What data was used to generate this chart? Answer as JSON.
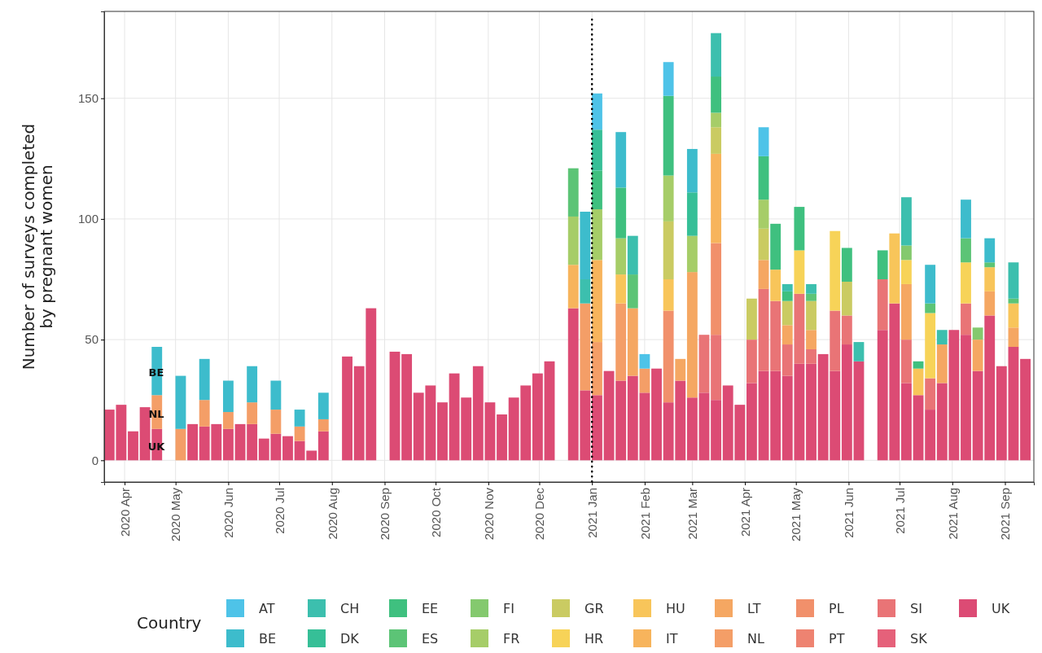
{
  "chart_data": {
    "type": "bar",
    "stacked": true,
    "ylabel": "Number of surveys completed\nby pregnant women",
    "legend_title": "Country",
    "x": [
      "2020-03-23",
      "2020-03-30",
      "2020-04-06",
      "2020-04-13",
      "2020-04-20",
      "2020-05-04",
      "2020-05-11",
      "2020-05-18",
      "2020-05-25",
      "2020-06-01",
      "2020-06-08",
      "2020-06-15",
      "2020-06-22",
      "2020-06-29",
      "2020-07-06",
      "2020-07-13",
      "2020-07-20",
      "2020-07-27",
      "2020-08-10",
      "2020-08-17",
      "2020-08-24",
      "2020-09-07",
      "2020-09-14",
      "2020-09-21",
      "2020-09-28",
      "2020-10-05",
      "2020-10-12",
      "2020-10-19",
      "2020-10-26",
      "2020-11-02",
      "2020-11-09",
      "2020-11-16",
      "2020-11-23",
      "2020-11-30",
      "2020-12-07",
      "2020-12-21",
      "2020-12-28",
      "2021-01-04",
      "2021-01-11",
      "2021-01-18",
      "2021-01-25",
      "2021-02-01",
      "2021-02-08",
      "2021-02-15",
      "2021-02-22",
      "2021-03-01",
      "2021-03-08",
      "2021-03-15",
      "2021-03-22",
      "2021-03-29",
      "2021-04-05",
      "2021-04-12",
      "2021-04-19",
      "2021-04-26",
      "2021-05-03",
      "2021-05-10",
      "2021-05-17",
      "2021-05-24",
      "2021-05-31",
      "2021-06-07",
      "2021-06-21",
      "2021-06-28",
      "2021-07-05",
      "2021-07-12",
      "2021-07-19",
      "2021-07-26",
      "2021-08-02",
      "2021-08-09",
      "2021-08-16",
      "2021-08-23",
      "2021-08-30",
      "2021-09-06",
      "2021-09-13"
    ],
    "series": [
      {
        "name": "UK",
        "color": "#dc4b74",
        "values": [
          21,
          23,
          12,
          22,
          13,
          0,
          15,
          14,
          15,
          13,
          15,
          15,
          9,
          11,
          10,
          8,
          4,
          12,
          43,
          39,
          63,
          45,
          44,
          28,
          31,
          24,
          36,
          26,
          39,
          24,
          19,
          26,
          31,
          36,
          41,
          63,
          29,
          27,
          37,
          33,
          35,
          28,
          38,
          24,
          33,
          26,
          28,
          25,
          31,
          23,
          32,
          37,
          37,
          35,
          40,
          40,
          44,
          37,
          48,
          41,
          54,
          65,
          32,
          27,
          21,
          32,
          54,
          52,
          37,
          60,
          39,
          47,
          42
        ]
      },
      {
        "name": "SK",
        "color": "#e5617a",
        "values": [
          0,
          0,
          0,
          0,
          0,
          0,
          0,
          0,
          0,
          0,
          0,
          0,
          0,
          0,
          0,
          0,
          0,
          0,
          0,
          0,
          0,
          0,
          0,
          0,
          0,
          0,
          0,
          0,
          0,
          0,
          0,
          0,
          0,
          0,
          0,
          0,
          0,
          0,
          0,
          0,
          0,
          0,
          0,
          0,
          0,
          0,
          0,
          0,
          0,
          0,
          0,
          0,
          0,
          0,
          0,
          0,
          0,
          0,
          0,
          0,
          0,
          0,
          0,
          0,
          0,
          0,
          0,
          0,
          0,
          0,
          0,
          0,
          0
        ]
      },
      {
        "name": "SI",
        "color": "#e97476",
        "values": [
          0,
          0,
          0,
          0,
          0,
          0,
          0,
          0,
          0,
          0,
          0,
          0,
          0,
          0,
          0,
          0,
          0,
          0,
          0,
          0,
          0,
          0,
          0,
          0,
          0,
          0,
          0,
          0,
          0,
          0,
          0,
          0,
          0,
          0,
          0,
          0,
          0,
          0,
          0,
          0,
          0,
          0,
          0,
          0,
          0,
          0,
          24,
          27,
          0,
          0,
          18,
          34,
          29,
          13,
          29,
          6,
          0,
          25,
          12,
          0,
          21,
          0,
          18,
          0,
          13,
          0,
          0,
          13,
          0,
          0,
          0,
          0,
          0
        ]
      },
      {
        "name": "PT",
        "color": "#ee8371",
        "values": [
          0,
          0,
          0,
          0,
          0,
          0,
          0,
          0,
          0,
          0,
          0,
          0,
          0,
          0,
          0,
          0,
          0,
          0,
          0,
          0,
          0,
          0,
          0,
          0,
          0,
          0,
          0,
          0,
          0,
          0,
          0,
          0,
          0,
          0,
          0,
          0,
          0,
          0,
          0,
          0,
          0,
          0,
          0,
          0,
          0,
          0,
          0,
          0,
          0,
          0,
          0,
          0,
          0,
          0,
          0,
          0,
          0,
          0,
          0,
          0,
          0,
          0,
          0,
          0,
          0,
          0,
          0,
          0,
          0,
          0,
          0,
          0,
          0
        ]
      },
      {
        "name": "PL",
        "color": "#f1906b",
        "values": [
          0,
          0,
          0,
          0,
          0,
          0,
          0,
          0,
          0,
          0,
          0,
          0,
          0,
          0,
          0,
          0,
          0,
          0,
          0,
          0,
          0,
          0,
          0,
          0,
          0,
          0,
          0,
          0,
          0,
          0,
          0,
          0,
          0,
          0,
          0,
          0,
          0,
          0,
          0,
          0,
          0,
          0,
          0,
          38,
          0,
          0,
          0,
          38,
          0,
          0,
          0,
          0,
          0,
          0,
          0,
          0,
          0,
          0,
          0,
          0,
          0,
          0,
          0,
          0,
          0,
          0,
          0,
          0,
          0,
          0,
          0,
          0,
          0
        ]
      },
      {
        "name": "NL",
        "color": "#f49e67",
        "values": [
          0,
          0,
          0,
          0,
          14,
          13,
          0,
          11,
          0,
          7,
          0,
          9,
          0,
          10,
          0,
          6,
          0,
          5,
          0,
          0,
          0,
          0,
          0,
          0,
          0,
          0,
          0,
          0,
          0,
          0,
          0,
          0,
          0,
          0,
          0,
          0,
          36,
          22,
          0,
          32,
          0,
          10,
          0,
          0,
          0,
          0,
          0,
          0,
          0,
          0,
          0,
          0,
          0,
          0,
          0,
          0,
          0,
          0,
          0,
          0,
          0,
          0,
          0,
          0,
          0,
          0,
          0,
          0,
          0,
          0,
          0,
          0,
          0
        ]
      },
      {
        "name": "LT",
        "color": "#f5a762",
        "values": [
          0,
          0,
          0,
          0,
          0,
          0,
          0,
          0,
          0,
          0,
          0,
          0,
          0,
          0,
          0,
          0,
          0,
          0,
          0,
          0,
          0,
          0,
          0,
          0,
          0,
          0,
          0,
          0,
          0,
          0,
          0,
          0,
          0,
          0,
          0,
          0,
          0,
          0,
          0,
          0,
          28,
          0,
          0,
          0,
          9,
          52,
          0,
          0,
          0,
          0,
          0,
          12,
          0,
          8,
          0,
          8,
          0,
          0,
          0,
          0,
          0,
          0,
          23,
          0,
          0,
          16,
          0,
          0,
          13,
          10,
          0,
          8,
          0
        ]
      },
      {
        "name": "IT",
        "color": "#f7b45c",
        "values": [
          0,
          0,
          0,
          0,
          0,
          0,
          0,
          0,
          0,
          0,
          0,
          0,
          0,
          0,
          0,
          0,
          0,
          0,
          0,
          0,
          0,
          0,
          0,
          0,
          0,
          0,
          0,
          0,
          0,
          0,
          0,
          0,
          0,
          0,
          0,
          18,
          0,
          34,
          0,
          0,
          0,
          0,
          0,
          0,
          0,
          0,
          0,
          37,
          0,
          0,
          0,
          0,
          0,
          0,
          0,
          0,
          0,
          0,
          0,
          0,
          0,
          0,
          0,
          0,
          0,
          0,
          0,
          0,
          0,
          0,
          0,
          0,
          0
        ]
      },
      {
        "name": "HU",
        "color": "#f8c55a",
        "values": [
          0,
          0,
          0,
          0,
          0,
          0,
          0,
          0,
          0,
          0,
          0,
          0,
          0,
          0,
          0,
          0,
          0,
          0,
          0,
          0,
          0,
          0,
          0,
          0,
          0,
          0,
          0,
          0,
          0,
          0,
          0,
          0,
          0,
          0,
          0,
          0,
          0,
          0,
          0,
          12,
          0,
          0,
          0,
          13,
          0,
          0,
          0,
          0,
          0,
          0,
          0,
          0,
          13,
          0,
          0,
          0,
          0,
          0,
          0,
          0,
          0,
          29,
          0,
          11,
          0,
          0,
          0,
          0,
          0,
          10,
          0,
          10,
          0
        ]
      },
      {
        "name": "HR",
        "color": "#f7d358",
        "values": [
          0,
          0,
          0,
          0,
          0,
          0,
          0,
          0,
          0,
          0,
          0,
          0,
          0,
          0,
          0,
          0,
          0,
          0,
          0,
          0,
          0,
          0,
          0,
          0,
          0,
          0,
          0,
          0,
          0,
          0,
          0,
          0,
          0,
          0,
          0,
          0,
          0,
          0,
          0,
          0,
          0,
          0,
          0,
          0,
          0,
          0,
          0,
          0,
          0,
          0,
          0,
          0,
          0,
          0,
          18,
          0,
          0,
          33,
          0,
          0,
          0,
          0,
          10,
          0,
          27,
          0,
          0,
          17,
          0,
          0,
          0,
          0,
          0
        ]
      },
      {
        "name": "GR",
        "color": "#cacb62",
        "values": [
          0,
          0,
          0,
          0,
          0,
          0,
          0,
          0,
          0,
          0,
          0,
          0,
          0,
          0,
          0,
          0,
          0,
          0,
          0,
          0,
          0,
          0,
          0,
          0,
          0,
          0,
          0,
          0,
          0,
          0,
          0,
          0,
          0,
          0,
          0,
          0,
          0,
          0,
          0,
          0,
          0,
          0,
          0,
          24,
          0,
          0,
          0,
          11,
          0,
          0,
          17,
          13,
          0,
          10,
          0,
          12,
          0,
          0,
          14,
          0,
          0,
          0,
          0,
          0,
          0,
          0,
          0,
          0,
          0,
          0,
          0,
          0,
          0
        ]
      },
      {
        "name": "FR",
        "color": "#a6cd68",
        "values": [
          0,
          0,
          0,
          0,
          0,
          0,
          0,
          0,
          0,
          0,
          0,
          0,
          0,
          0,
          0,
          0,
          0,
          0,
          0,
          0,
          0,
          0,
          0,
          0,
          0,
          0,
          0,
          0,
          0,
          0,
          0,
          0,
          0,
          0,
          0,
          20,
          0,
          21,
          0,
          15,
          0,
          0,
          0,
          19,
          0,
          15,
          0,
          6,
          0,
          0,
          0,
          12,
          0,
          0,
          0,
          0,
          0,
          0,
          0,
          0,
          0,
          0,
          0,
          0,
          0,
          0,
          0,
          0,
          0,
          0,
          0,
          0,
          0
        ]
      },
      {
        "name": "FI",
        "color": "#84c96e",
        "values": [
          0,
          0,
          0,
          0,
          0,
          0,
          0,
          0,
          0,
          0,
          0,
          0,
          0,
          0,
          0,
          0,
          0,
          0,
          0,
          0,
          0,
          0,
          0,
          0,
          0,
          0,
          0,
          0,
          0,
          0,
          0,
          0,
          0,
          0,
          0,
          0,
          0,
          0,
          0,
          0,
          0,
          0,
          0,
          0,
          0,
          0,
          0,
          0,
          0,
          0,
          0,
          0,
          0,
          0,
          0,
          0,
          0,
          0,
          0,
          0,
          0,
          0,
          6,
          0,
          0,
          0,
          0,
          0,
          5,
          0,
          0,
          0,
          0
        ]
      },
      {
        "name": "ES",
        "color": "#5cc476",
        "values": [
          0,
          0,
          0,
          0,
          0,
          0,
          0,
          0,
          0,
          0,
          0,
          0,
          0,
          0,
          0,
          0,
          0,
          0,
          0,
          0,
          0,
          0,
          0,
          0,
          0,
          0,
          0,
          0,
          0,
          0,
          0,
          0,
          0,
          0,
          0,
          20,
          0,
          0,
          0,
          0,
          14,
          0,
          0,
          0,
          0,
          0,
          0,
          0,
          0,
          0,
          0,
          0,
          0,
          0,
          0,
          3,
          0,
          0,
          0,
          0,
          0,
          0,
          0,
          0,
          4,
          0,
          0,
          10,
          0,
          2,
          0,
          2,
          0
        ]
      },
      {
        "name": "EE",
        "color": "#3fc07f",
        "values": [
          0,
          0,
          0,
          0,
          0,
          0,
          0,
          0,
          0,
          0,
          0,
          0,
          0,
          0,
          0,
          0,
          0,
          0,
          0,
          0,
          0,
          0,
          0,
          0,
          0,
          0,
          0,
          0,
          0,
          0,
          0,
          0,
          0,
          0,
          0,
          0,
          0,
          16,
          0,
          21,
          0,
          0,
          0,
          33,
          0,
          0,
          0,
          15,
          0,
          0,
          0,
          18,
          19,
          4,
          18,
          0,
          0,
          0,
          14,
          0,
          12,
          0,
          0,
          3,
          0,
          0,
          0,
          0,
          0,
          0,
          0,
          0,
          0
        ]
      },
      {
        "name": "DK",
        "color": "#36bf97",
        "values": [
          0,
          0,
          0,
          0,
          0,
          0,
          0,
          0,
          0,
          0,
          0,
          0,
          0,
          0,
          0,
          0,
          0,
          0,
          0,
          0,
          0,
          0,
          0,
          0,
          0,
          0,
          0,
          0,
          0,
          0,
          0,
          0,
          0,
          0,
          0,
          0,
          0,
          17,
          0,
          0,
          0,
          0,
          0,
          0,
          0,
          18,
          0,
          0,
          0,
          0,
          0,
          0,
          0,
          0,
          0,
          0,
          0,
          0,
          0,
          0,
          0,
          0,
          0,
          0,
          0,
          0,
          0,
          0,
          0,
          0,
          0,
          0,
          0
        ]
      },
      {
        "name": "CH",
        "color": "#3cbfae",
        "values": [
          0,
          0,
          0,
          0,
          0,
          0,
          0,
          0,
          0,
          0,
          0,
          0,
          0,
          0,
          0,
          0,
          0,
          0,
          0,
          0,
          0,
          0,
          0,
          0,
          0,
          0,
          0,
          0,
          0,
          0,
          0,
          0,
          0,
          0,
          0,
          0,
          10,
          0,
          0,
          0,
          16,
          0,
          0,
          0,
          0,
          0,
          0,
          18,
          0,
          0,
          0,
          0,
          0,
          3,
          0,
          4,
          0,
          0,
          0,
          8,
          0,
          0,
          20,
          0,
          0,
          6,
          0,
          0,
          0,
          0,
          0,
          15,
          0
        ]
      },
      {
        "name": "BE",
        "color": "#3dbccc",
        "values": [
          0,
          0,
          0,
          0,
          20,
          22,
          0,
          17,
          0,
          13,
          0,
          15,
          0,
          12,
          0,
          7,
          0,
          11,
          0,
          0,
          0,
          0,
          0,
          0,
          0,
          0,
          0,
          0,
          0,
          0,
          0,
          0,
          0,
          0,
          0,
          0,
          28,
          0,
          0,
          23,
          0,
          0,
          0,
          0,
          0,
          18,
          0,
          0,
          0,
          0,
          0,
          0,
          0,
          0,
          0,
          0,
          0,
          0,
          0,
          0,
          0,
          0,
          0,
          0,
          16,
          0,
          0,
          16,
          0,
          10,
          0,
          0,
          0
        ]
      },
      {
        "name": "AT",
        "color": "#4ec3e8",
        "values": [
          0,
          0,
          0,
          0,
          0,
          0,
          0,
          0,
          0,
          0,
          0,
          0,
          0,
          0,
          0,
          0,
          0,
          0,
          0,
          0,
          0,
          0,
          0,
          0,
          0,
          0,
          0,
          0,
          0,
          0,
          0,
          0,
          0,
          0,
          0,
          0,
          0,
          15,
          0,
          0,
          0,
          6,
          0,
          14,
          0,
          0,
          0,
          0,
          0,
          0,
          0,
          12,
          0,
          0,
          0,
          0,
          0,
          0,
          0,
          0,
          0,
          0,
          0,
          0,
          0,
          0,
          0,
          0,
          0,
          0,
          0,
          0,
          0
        ]
      }
    ],
    "xlim": [
      "2020-03-20",
      "2021-09-18"
    ],
    "xticks": [
      {
        "value": "2020-04-01",
        "label": "2020 Apr"
      },
      {
        "value": "2020-05-01",
        "label": "2020 May"
      },
      {
        "value": "2020-06-01",
        "label": "2020 Jun"
      },
      {
        "value": "2020-07-01",
        "label": "2020 Jul"
      },
      {
        "value": "2020-08-01",
        "label": "2020 Aug"
      },
      {
        "value": "2020-09-01",
        "label": "2020 Sep"
      },
      {
        "value": "2020-10-01",
        "label": "2020 Oct"
      },
      {
        "value": "2020-11-01",
        "label": "2020 Nov"
      },
      {
        "value": "2020-12-01",
        "label": "2020 Dec"
      },
      {
        "value": "2021-01-01",
        "label": "2021 Jan"
      },
      {
        "value": "2021-02-01",
        "label": "2021 Feb"
      },
      {
        "value": "2021-03-01",
        "label": "2021 Mar"
      },
      {
        "value": "2021-04-01",
        "label": "2021 Apr"
      },
      {
        "value": "2021-05-01",
        "label": "2021 May"
      },
      {
        "value": "2021-06-01",
        "label": "2021 Jun"
      },
      {
        "value": "2021-07-01",
        "label": "2021 Jul"
      },
      {
        "value": "2021-08-01",
        "label": "2021 Aug"
      },
      {
        "value": "2021-09-01",
        "label": "2021 Sep"
      }
    ],
    "ylim": [
      -9,
      186
    ],
    "yticks": [
      0,
      50,
      100,
      150
    ],
    "grid": true,
    "legend": "bottom",
    "ref_lines": [
      {
        "axis": "x",
        "value": "2021-01-01",
        "color": "#000000",
        "line_style": "dotted"
      }
    ],
    "annotations": [
      "BE",
      "NL",
      "UK"
    ]
  }
}
